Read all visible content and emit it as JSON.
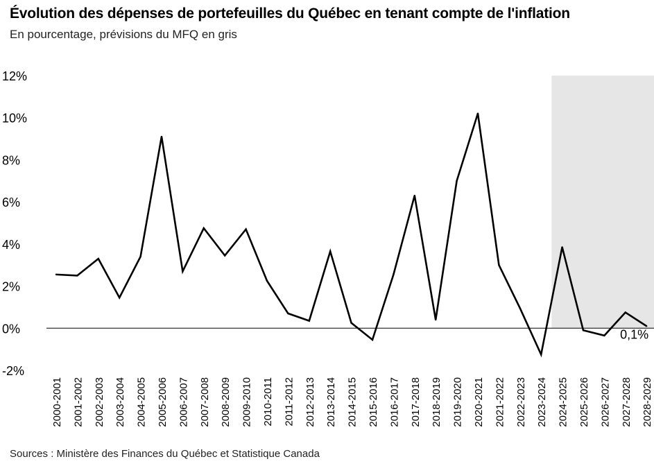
{
  "title": "Évolution des dépenses de portefeuilles du Québec en tenant compte de l'inflation",
  "subtitle": "En pourcentage, prévisions du MFQ en gris",
  "source": "Sources : Ministère des Finances du Québec et Statistique Canada",
  "colors": {
    "line": "#000000",
    "forecast_shading": "#e6e6e6",
    "zero_line": "#000000"
  },
  "chart_data": {
    "type": "line",
    "title": "Évolution des dépenses de portefeuilles du Québec en tenant compte de l'inflation",
    "xlabel": "",
    "ylabel": "",
    "ylim": [
      -2,
      12
    ],
    "yticks": [
      -2,
      0,
      2,
      4,
      6,
      8,
      10,
      12
    ],
    "ytick_labels": [
      "-2%",
      "0%",
      "2%",
      "4%",
      "6%",
      "8%",
      "10%",
      "12%"
    ],
    "grid": false,
    "forecast_start": "2024-2025",
    "forecast_end": "2028-2029",
    "categories": [
      "2000-2001",
      "2001-2002",
      "2002-2003",
      "2003-2004",
      "2004-2005",
      "2005-2006",
      "2006-2007",
      "2007-2008",
      "2008-2009",
      "2009-2010",
      "2010-2011",
      "2011-2012",
      "2012-2013",
      "2013-2014",
      "2014-2015",
      "2015-2016",
      "2016-2017",
      "2017-2018",
      "2018-2019",
      "2019-2020",
      "2020-2021",
      "2021-2022",
      "2022-2023",
      "2023-2024",
      "2024-2025",
      "2025-2026",
      "2026-2027",
      "2027-2028",
      "2028-2029"
    ],
    "series": [
      {
        "values": [
          2.55,
          2.5,
          3.3,
          1.45,
          3.4,
          9.1,
          2.7,
          4.75,
          3.45,
          4.7,
          2.25,
          0.7,
          0.35,
          3.65,
          0.25,
          -0.55,
          2.55,
          6.3,
          0.4,
          7.0,
          10.2,
          3.0,
          0.95,
          -1.25,
          3.85,
          -0.1,
          -0.35,
          0.75,
          0.1
        ]
      }
    ],
    "annotations": [
      {
        "category": "2028-2029",
        "text": "0,1%"
      }
    ]
  }
}
